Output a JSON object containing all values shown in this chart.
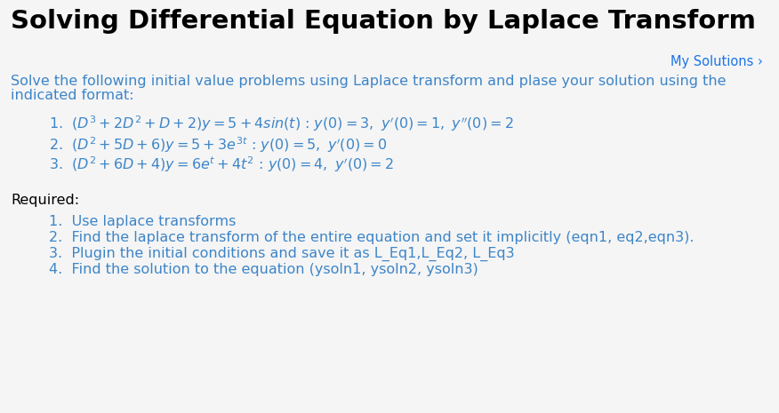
{
  "title": "Solving Differential Equation by Laplace Transform",
  "my_solutions": "My Solutions ›",
  "intro_line1": "Solve the following initial value problems using Laplace transform and plase your solution using the",
  "intro_line2": "indicated format:",
  "required_label": "Required:",
  "req1": "Use laplace transforms",
  "req2": "Find the laplace transform of the entire equation and set it implicitly (eqn1, eq2,eqn3).",
  "req3": "Plugin the initial conditions and save it as L_Eq1,L_Eq2, L_Eq3",
  "req4": "Find the solution to the equation (ysoln1, ysoln2, ysoln3)",
  "title_color": "#1a1a1a",
  "body_color": "#3d85c8",
  "bg_color": "#f5f5f5",
  "link_color": "#1a73e8",
  "black": "#000000",
  "title_fontsize": 21,
  "body_fontsize": 11.5,
  "math_fontsize": 11.5,
  "req_fontsize": 11.5
}
